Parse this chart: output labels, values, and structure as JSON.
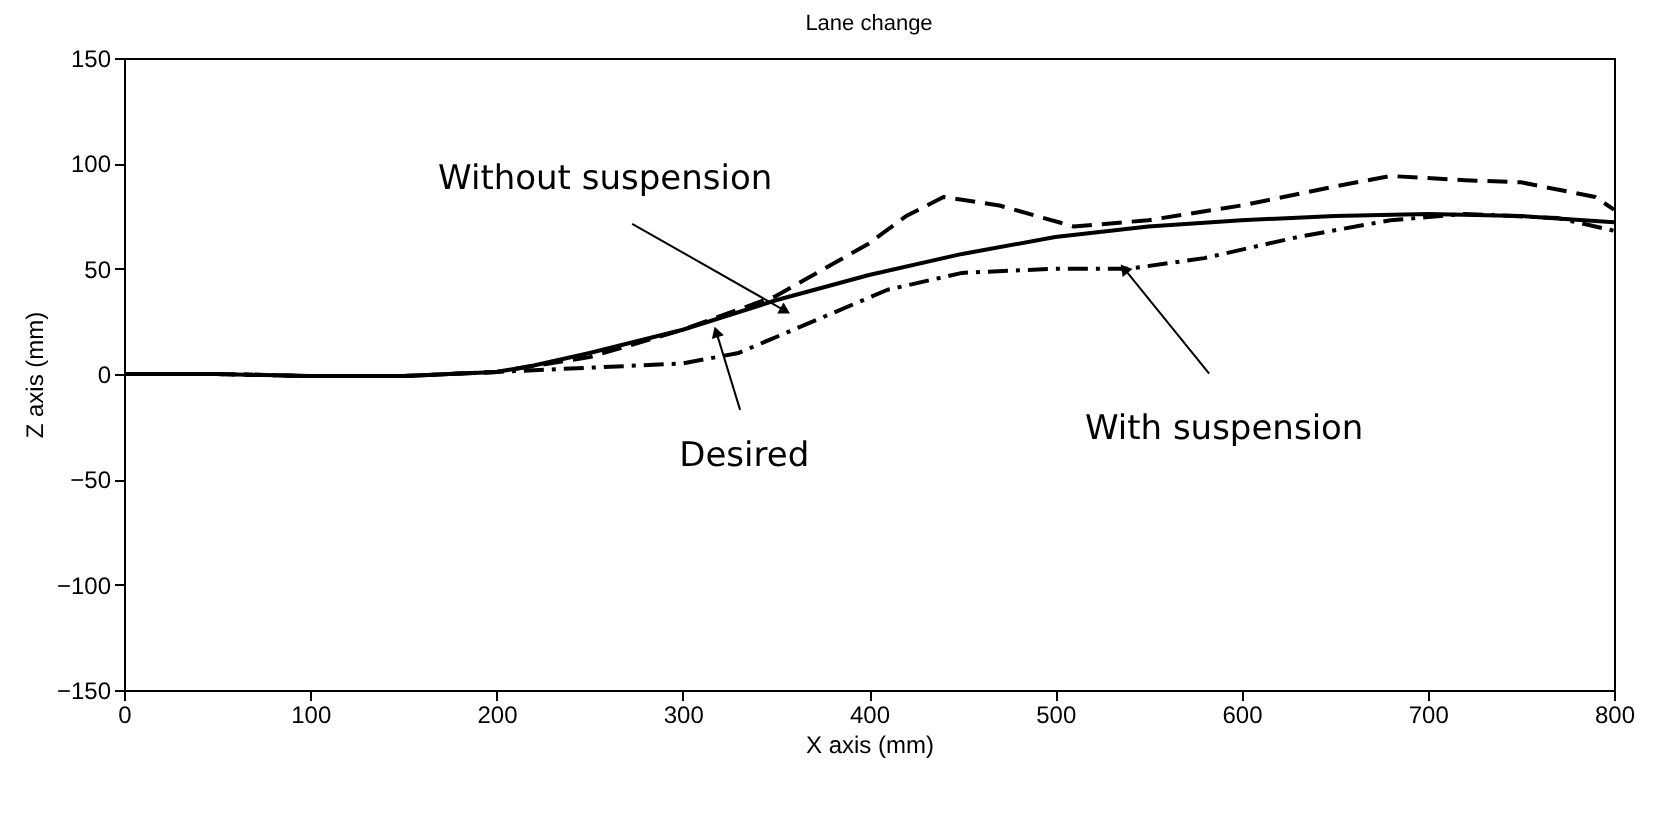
{
  "chart_data": {
    "type": "line",
    "title": "Lane change",
    "xlabel": "X axis (mm)",
    "ylabel": "Z axis (mm)",
    "xlim": [
      0,
      800
    ],
    "ylim": [
      -150,
      150
    ],
    "xticks": [
      0,
      100,
      200,
      300,
      400,
      500,
      600,
      700,
      800
    ],
    "yticks": [
      -150,
      -100,
      -50,
      0,
      50,
      100,
      150
    ],
    "marker": "none",
    "series": [
      {
        "color": "#000000",
        "line_style": "solid",
        "x": [
          0,
          50,
          100,
          150,
          200,
          220,
          250,
          300,
          350,
          400,
          450,
          500,
          550,
          600,
          650,
          700,
          750,
          800
        ],
        "values": [
          0,
          0,
          -1,
          -1,
          1,
          4,
          10,
          21,
          35,
          47,
          57,
          65,
          70,
          73,
          75,
          76,
          75,
          72
        ]
      },
      {
        "color": "#000000",
        "line_style": "dashed",
        "x": [
          0,
          50,
          100,
          150,
          200,
          250,
          300,
          350,
          400,
          420,
          440,
          470,
          510,
          550,
          600,
          650,
          680,
          720,
          750,
          790,
          800
        ],
        "values": [
          0,
          0,
          -1,
          -1,
          1,
          8,
          21,
          37,
          62,
          75,
          84,
          80,
          70,
          73,
          80,
          89,
          94,
          92,
          91,
          84,
          78
        ]
      },
      {
        "color": "#000000",
        "line_style": "dashdot",
        "x": [
          0,
          50,
          100,
          150,
          200,
          250,
          300,
          330,
          370,
          410,
          450,
          500,
          540,
          580,
          630,
          680,
          720,
          770,
          800
        ],
        "values": [
          0,
          0,
          -1,
          -1,
          1,
          3,
          5,
          10,
          25,
          40,
          48,
          50,
          50,
          55,
          65,
          73,
          76,
          74,
          68
        ]
      }
    ],
    "annotations": [
      {
        "text": "Without suspension",
        "x": 355,
        "y": 30
      },
      {
        "text": "Desired",
        "x": 318,
        "y": 20
      },
      {
        "text": "With suspension",
        "x": 537,
        "y": 50
      }
    ]
  }
}
